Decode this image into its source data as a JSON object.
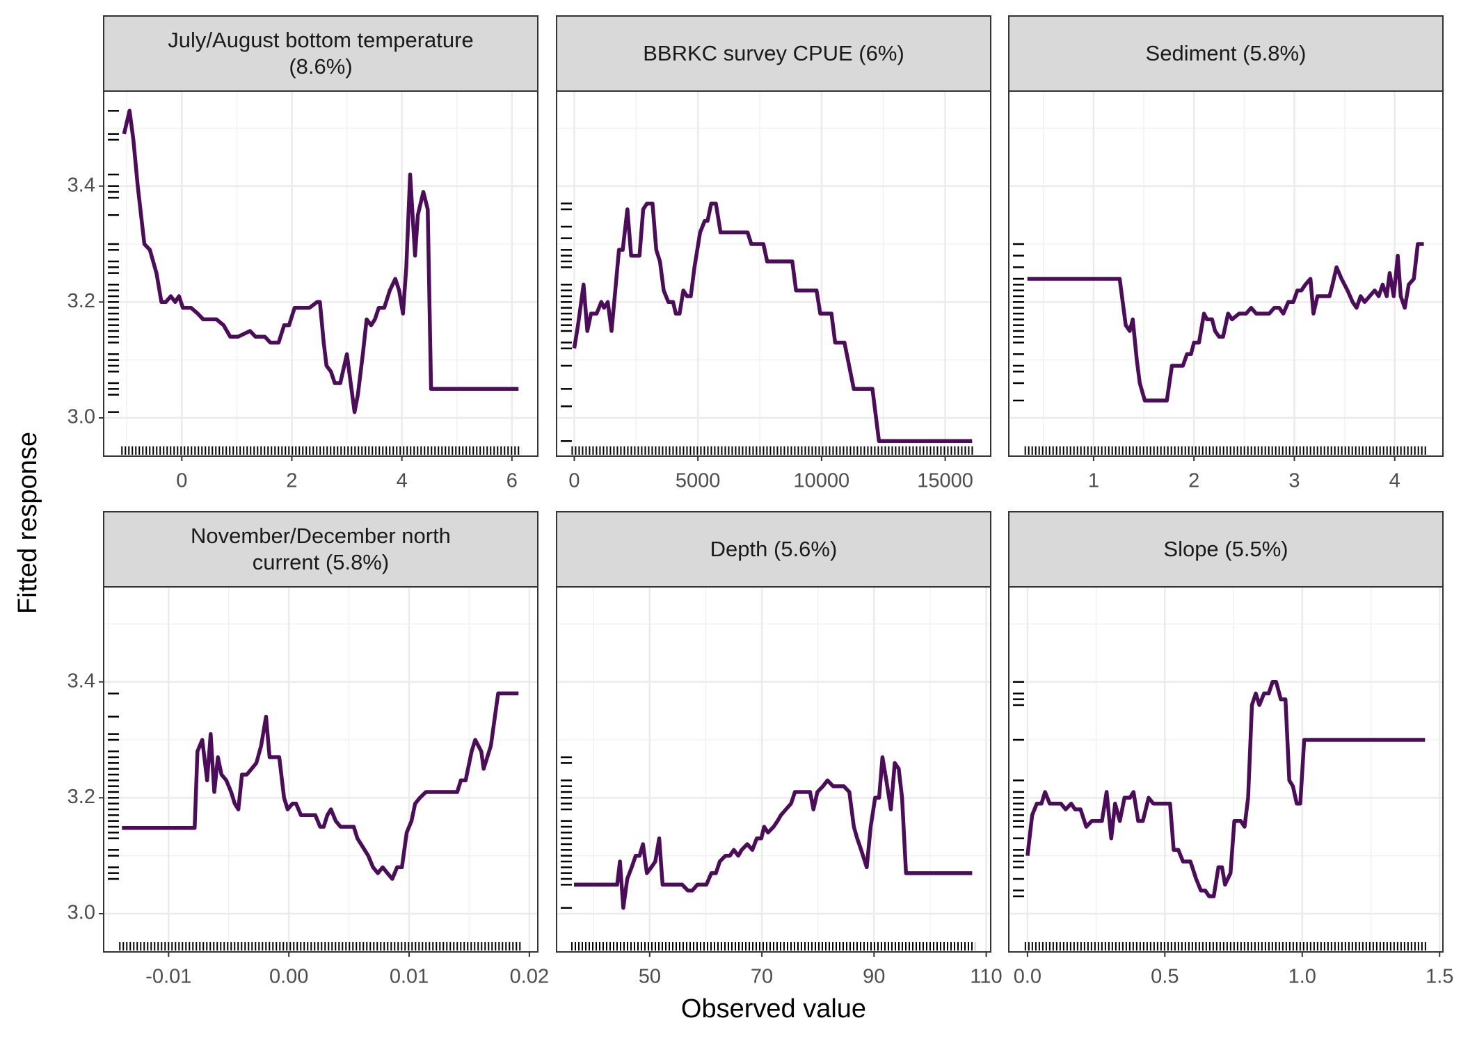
{
  "chart_data": {
    "type": "line",
    "xlabel": "Observed value",
    "ylabel": "Fitted response",
    "color": "#4b0c5a",
    "grid": true,
    "ylim": [
      2.934,
      3.564
    ],
    "yticks": [
      {
        "value": 3,
        "label": "3.0"
      },
      3.2,
      3.4
    ],
    "panels": [
      {
        "title": "July/August bottom temperature (8.6%)",
        "xlim": [
          -1.42,
          6.47
        ],
        "xticks": [
          0,
          2,
          4,
          6
        ],
        "x": [
          -1.05,
          -0.95,
          -0.88,
          -0.8,
          -0.68,
          -0.58,
          -0.46,
          -0.37,
          -0.29,
          -0.2,
          -0.12,
          -0.05,
          0.02,
          0.17,
          0.29,
          0.39,
          0.63,
          0.76,
          0.88,
          1.02,
          1.24,
          1.34,
          1.51,
          1.61,
          1.76,
          1.86,
          1.95,
          2.05,
          2.22,
          2.32,
          2.46,
          2.51,
          2.58,
          2.63,
          2.71,
          2.78,
          2.88,
          3.0,
          3.07,
          3.14,
          3.2,
          3.29,
          3.36,
          3.44,
          3.51,
          3.58,
          3.68,
          3.78,
          3.88,
          3.95,
          4.02,
          4.08,
          4.15,
          4.24,
          4.29,
          4.39,
          4.47,
          4.53,
          6.12
        ],
        "values": [
          3.49,
          3.53,
          3.48,
          3.4,
          3.3,
          3.29,
          3.25,
          3.2,
          3.2,
          3.21,
          3.2,
          3.21,
          3.19,
          3.19,
          3.18,
          3.17,
          3.17,
          3.16,
          3.14,
          3.14,
          3.15,
          3.14,
          3.14,
          3.13,
          3.13,
          3.16,
          3.16,
          3.19,
          3.19,
          3.19,
          3.2,
          3.2,
          3.13,
          3.09,
          3.08,
          3.06,
          3.06,
          3.11,
          3.06,
          3.01,
          3.04,
          3.11,
          3.17,
          3.16,
          3.17,
          3.19,
          3.19,
          3.22,
          3.24,
          3.22,
          3.18,
          3.26,
          3.42,
          3.28,
          3.35,
          3.39,
          3.36,
          3.05,
          3.05
        ],
        "rug_y": [
          3.53,
          3.49,
          3.48,
          3.42,
          3.4,
          3.39,
          3.38,
          3.35,
          3.3,
          3.29,
          3.27,
          3.26,
          3.25,
          3.23,
          3.22,
          3.21,
          3.2,
          3.19,
          3.18,
          3.17,
          3.16,
          3.15,
          3.14,
          3.13,
          3.11,
          3.1,
          3.09,
          3.08,
          3.06,
          3.05,
          3.04,
          3.01
        ]
      },
      {
        "title": "BBRKC survey CPUE (6%)",
        "xlim": [
          -716,
          16840
        ],
        "xticks": [
          0,
          5000,
          10000,
          15000
        ],
        "x": [
          0,
          150,
          377,
          528,
          678,
          904,
          1092,
          1206,
          1356,
          1507,
          1658,
          1809,
          1959,
          2148,
          2299,
          2638,
          2788,
          2939,
          3165,
          3316,
          3466,
          3617,
          3806,
          3994,
          4107,
          4258,
          4409,
          4559,
          4710,
          4861,
          5087,
          5275,
          5388,
          5539,
          5727,
          5916,
          7009,
          7160,
          7649,
          7800,
          8817,
          8968,
          9797,
          9948,
          10400,
          10550,
          10927,
          11304,
          12058,
          12321,
          16089
        ],
        "values": [
          3.12,
          3.16,
          3.23,
          3.15,
          3.18,
          3.18,
          3.2,
          3.19,
          3.2,
          3.15,
          3.22,
          3.29,
          3.29,
          3.36,
          3.28,
          3.28,
          3.36,
          3.37,
          3.37,
          3.29,
          3.27,
          3.22,
          3.2,
          3.2,
          3.18,
          3.18,
          3.22,
          3.21,
          3.21,
          3.26,
          3.32,
          3.34,
          3.34,
          3.37,
          3.37,
          3.32,
          3.32,
          3.3,
          3.3,
          3.27,
          3.27,
          3.22,
          3.22,
          3.18,
          3.18,
          3.13,
          3.13,
          3.05,
          3.05,
          2.96,
          2.96
        ],
        "rug_y": [
          3.37,
          3.36,
          3.33,
          3.31,
          3.29,
          3.28,
          3.27,
          3.26,
          3.23,
          3.22,
          3.21,
          3.2,
          3.19,
          3.18,
          3.17,
          3.16,
          3.15,
          3.13,
          3.12,
          3.09,
          3.05,
          3.02,
          2.96
        ]
      },
      {
        "title": "Sediment (5.8%)",
        "xlim": [
          0.155,
          4.48
        ],
        "xticks": [
          1,
          2,
          3,
          4
        ],
        "x": [
          0.34,
          1.26,
          1.32,
          1.36,
          1.39,
          1.43,
          1.46,
          1.51,
          1.61,
          1.66,
          1.73,
          1.78,
          1.82,
          1.89,
          1.93,
          1.97,
          2.0,
          2.05,
          2.1,
          2.13,
          2.18,
          2.21,
          2.25,
          2.29,
          2.34,
          2.38,
          2.45,
          2.52,
          2.57,
          2.62,
          2.66,
          2.71,
          2.75,
          2.8,
          2.85,
          2.89,
          2.94,
          2.99,
          3.03,
          3.07,
          3.11,
          3.16,
          3.19,
          3.23,
          3.28,
          3.35,
          3.38,
          3.42,
          3.47,
          3.53,
          3.58,
          3.62,
          3.66,
          3.7,
          3.75,
          3.8,
          3.84,
          3.88,
          3.92,
          3.95,
          3.99,
          4.03,
          4.06,
          4.1,
          4.14,
          4.19,
          4.23,
          4.29
        ],
        "values": [
          3.24,
          3.24,
          3.16,
          3.15,
          3.17,
          3.1,
          3.06,
          3.03,
          3.03,
          3.03,
          3.03,
          3.09,
          3.09,
          3.09,
          3.11,
          3.11,
          3.13,
          3.13,
          3.18,
          3.17,
          3.17,
          3.15,
          3.14,
          3.14,
          3.18,
          3.17,
          3.18,
          3.18,
          3.19,
          3.18,
          3.18,
          3.18,
          3.18,
          3.19,
          3.19,
          3.18,
          3.2,
          3.2,
          3.22,
          3.22,
          3.23,
          3.24,
          3.18,
          3.21,
          3.21,
          3.21,
          3.23,
          3.26,
          3.24,
          3.22,
          3.2,
          3.19,
          3.21,
          3.2,
          3.21,
          3.22,
          3.21,
          3.23,
          3.21,
          3.25,
          3.21,
          3.28,
          3.21,
          3.19,
          3.23,
          3.24,
          3.3,
          3.3
        ],
        "rug_y": [
          3.3,
          3.28,
          3.26,
          3.24,
          3.23,
          3.22,
          3.21,
          3.2,
          3.19,
          3.18,
          3.17,
          3.16,
          3.15,
          3.14,
          3.13,
          3.11,
          3.09,
          3.08,
          3.06,
          3.03
        ]
      },
      {
        "title": "November/December north current (5.8%)",
        "xlim": [
          -0.0154,
          0.0207
        ],
        "xticks": [
          -0.01,
          {
            "value": 0,
            "label": "0.00"
          },
          0.01,
          0.02
        ],
        "x": [
          -0.01388,
          -0.00783,
          -0.0076,
          -0.0072,
          -0.0068,
          -0.0065,
          -0.0062,
          -0.0059,
          -0.0056,
          -0.0052,
          -0.0048,
          -0.0045,
          -0.0042,
          -0.0039,
          -0.0035,
          -0.0031,
          -0.0027,
          -0.0023,
          -0.0019,
          -0.0016,
          -0.0011,
          -0.0008,
          -0.0004,
          -0.0001,
          0.0003,
          0.0006,
          0.001,
          0.0014,
          0.0019,
          0.0022,
          0.0026,
          0.0029,
          0.0032,
          0.0035,
          0.0039,
          0.0043,
          0.0048,
          0.0054,
          0.0057,
          0.0063,
          0.0066,
          0.007,
          0.0074,
          0.0078,
          0.0082,
          0.0086,
          0.009,
          0.0094,
          0.0098,
          0.0102,
          0.0105,
          0.0109,
          0.0114,
          0.014,
          0.0143,
          0.0147,
          0.0152,
          0.0155,
          0.016,
          0.0162,
          0.0168,
          0.0174,
          0.0191
        ],
        "values": [
          3.148,
          3.148,
          3.28,
          3.3,
          3.23,
          3.31,
          3.21,
          3.27,
          3.24,
          3.23,
          3.21,
          3.19,
          3.18,
          3.24,
          3.24,
          3.25,
          3.26,
          3.29,
          3.34,
          3.27,
          3.27,
          3.27,
          3.2,
          3.18,
          3.19,
          3.19,
          3.17,
          3.17,
          3.17,
          3.17,
          3.15,
          3.15,
          3.17,
          3.18,
          3.16,
          3.15,
          3.15,
          3.15,
          3.13,
          3.11,
          3.1,
          3.08,
          3.07,
          3.08,
          3.07,
          3.06,
          3.08,
          3.08,
          3.14,
          3.16,
          3.19,
          3.2,
          3.21,
          3.21,
          3.23,
          3.23,
          3.28,
          3.3,
          3.28,
          3.25,
          3.29,
          3.38,
          3.38
        ],
        "rug_y": [
          3.38,
          3.34,
          3.31,
          3.3,
          3.28,
          3.27,
          3.26,
          3.25,
          3.24,
          3.23,
          3.22,
          3.21,
          3.2,
          3.19,
          3.18,
          3.17,
          3.16,
          3.15,
          3.14,
          3.13,
          3.11,
          3.1,
          3.08,
          3.07,
          3.06
        ]
      },
      {
        "title": "Depth (5.6%)",
        "xlim": [
          33.4,
          110.8
        ],
        "xticks": [
          50,
          70,
          90,
          110
        ],
        "x": [
          36.5,
          44.2,
          44.7,
          45.3,
          46.0,
          46.8,
          47.5,
          48.2,
          48.8,
          49.5,
          50.3,
          51.0,
          51.7,
          52.3,
          53.3,
          54.7,
          55.8,
          56.8,
          57.6,
          58.5,
          59.1,
          60.1,
          61.0,
          61.8,
          62.5,
          63.5,
          64.3,
          65.0,
          65.8,
          66.4,
          67.4,
          68.3,
          69.1,
          69.9,
          70.4,
          71.1,
          72.1,
          72.8,
          73.4,
          74.3,
          75.2,
          75.9,
          76.7,
          77.6,
          78.6,
          79.2,
          79.9,
          80.9,
          81.7,
          82.7,
          83.7,
          84.6,
          85.6,
          86.4,
          87.0,
          87.7,
          88.7,
          89.4,
          90.2,
          90.9,
          91.5,
          92.2,
          93.0,
          93.7,
          94.4,
          95.0,
          95.7,
          107.5
        ],
        "values": [
          3.05,
          3.05,
          3.09,
          3.01,
          3.06,
          3.08,
          3.1,
          3.1,
          3.12,
          3.07,
          3.08,
          3.09,
          3.13,
          3.05,
          3.05,
          3.05,
          3.05,
          3.04,
          3.04,
          3.05,
          3.05,
          3.05,
          3.07,
          3.07,
          3.09,
          3.1,
          3.1,
          3.11,
          3.1,
          3.11,
          3.12,
          3.11,
          3.13,
          3.13,
          3.15,
          3.14,
          3.15,
          3.16,
          3.17,
          3.18,
          3.19,
          3.21,
          3.21,
          3.21,
          3.21,
          3.18,
          3.21,
          3.22,
          3.23,
          3.22,
          3.22,
          3.22,
          3.21,
          3.15,
          3.13,
          3.11,
          3.08,
          3.15,
          3.2,
          3.2,
          3.27,
          3.23,
          3.18,
          3.26,
          3.25,
          3.2,
          3.07,
          3.07
        ],
        "rug_y": [
          3.27,
          3.26,
          3.23,
          3.22,
          3.21,
          3.2,
          3.19,
          3.18,
          3.16,
          3.15,
          3.14,
          3.13,
          3.12,
          3.11,
          3.1,
          3.09,
          3.08,
          3.07,
          3.06,
          3.05,
          3.01
        ]
      },
      {
        "title": "Slope (5.5%)",
        "xlim": [
          -0.068,
          1.512
        ],
        "xticks": [
          {
            "value": 0,
            "label": "0.0"
          },
          0.5,
          {
            "value": 1,
            "label": "1.0"
          },
          1.5
        ],
        "x": [
          0,
          0.017,
          0.034,
          0.051,
          0.064,
          0.081,
          0.102,
          0.122,
          0.139,
          0.159,
          0.173,
          0.193,
          0.214,
          0.234,
          0.254,
          0.271,
          0.288,
          0.305,
          0.319,
          0.336,
          0.353,
          0.373,
          0.386,
          0.403,
          0.42,
          0.441,
          0.458,
          0.519,
          0.532,
          0.549,
          0.566,
          0.593,
          0.614,
          0.631,
          0.647,
          0.661,
          0.678,
          0.695,
          0.708,
          0.719,
          0.739,
          0.753,
          0.776,
          0.79,
          0.803,
          0.817,
          0.831,
          0.844,
          0.861,
          0.878,
          0.892,
          0.905,
          0.922,
          0.939,
          0.953,
          0.966,
          0.98,
          0.993,
          1.007,
          1.447
        ],
        "values": [
          3.1,
          3.17,
          3.19,
          3.19,
          3.21,
          3.19,
          3.19,
          3.19,
          3.18,
          3.19,
          3.18,
          3.18,
          3.15,
          3.16,
          3.16,
          3.16,
          3.21,
          3.13,
          3.19,
          3.16,
          3.2,
          3.2,
          3.21,
          3.16,
          3.16,
          3.2,
          3.19,
          3.19,
          3.11,
          3.11,
          3.09,
          3.09,
          3.06,
          3.04,
          3.04,
          3.03,
          3.03,
          3.08,
          3.08,
          3.05,
          3.07,
          3.16,
          3.16,
          3.15,
          3.2,
          3.36,
          3.38,
          3.36,
          3.38,
          3.38,
          3.4,
          3.4,
          3.37,
          3.37,
          3.23,
          3.22,
          3.19,
          3.19,
          3.3,
          3.3
        ],
        "rug_y": [
          3.4,
          3.38,
          3.37,
          3.36,
          3.3,
          3.23,
          3.21,
          3.2,
          3.19,
          3.18,
          3.17,
          3.16,
          3.15,
          3.13,
          3.11,
          3.1,
          3.09,
          3.08,
          3.06,
          3.04,
          3.03
        ]
      }
    ]
  }
}
